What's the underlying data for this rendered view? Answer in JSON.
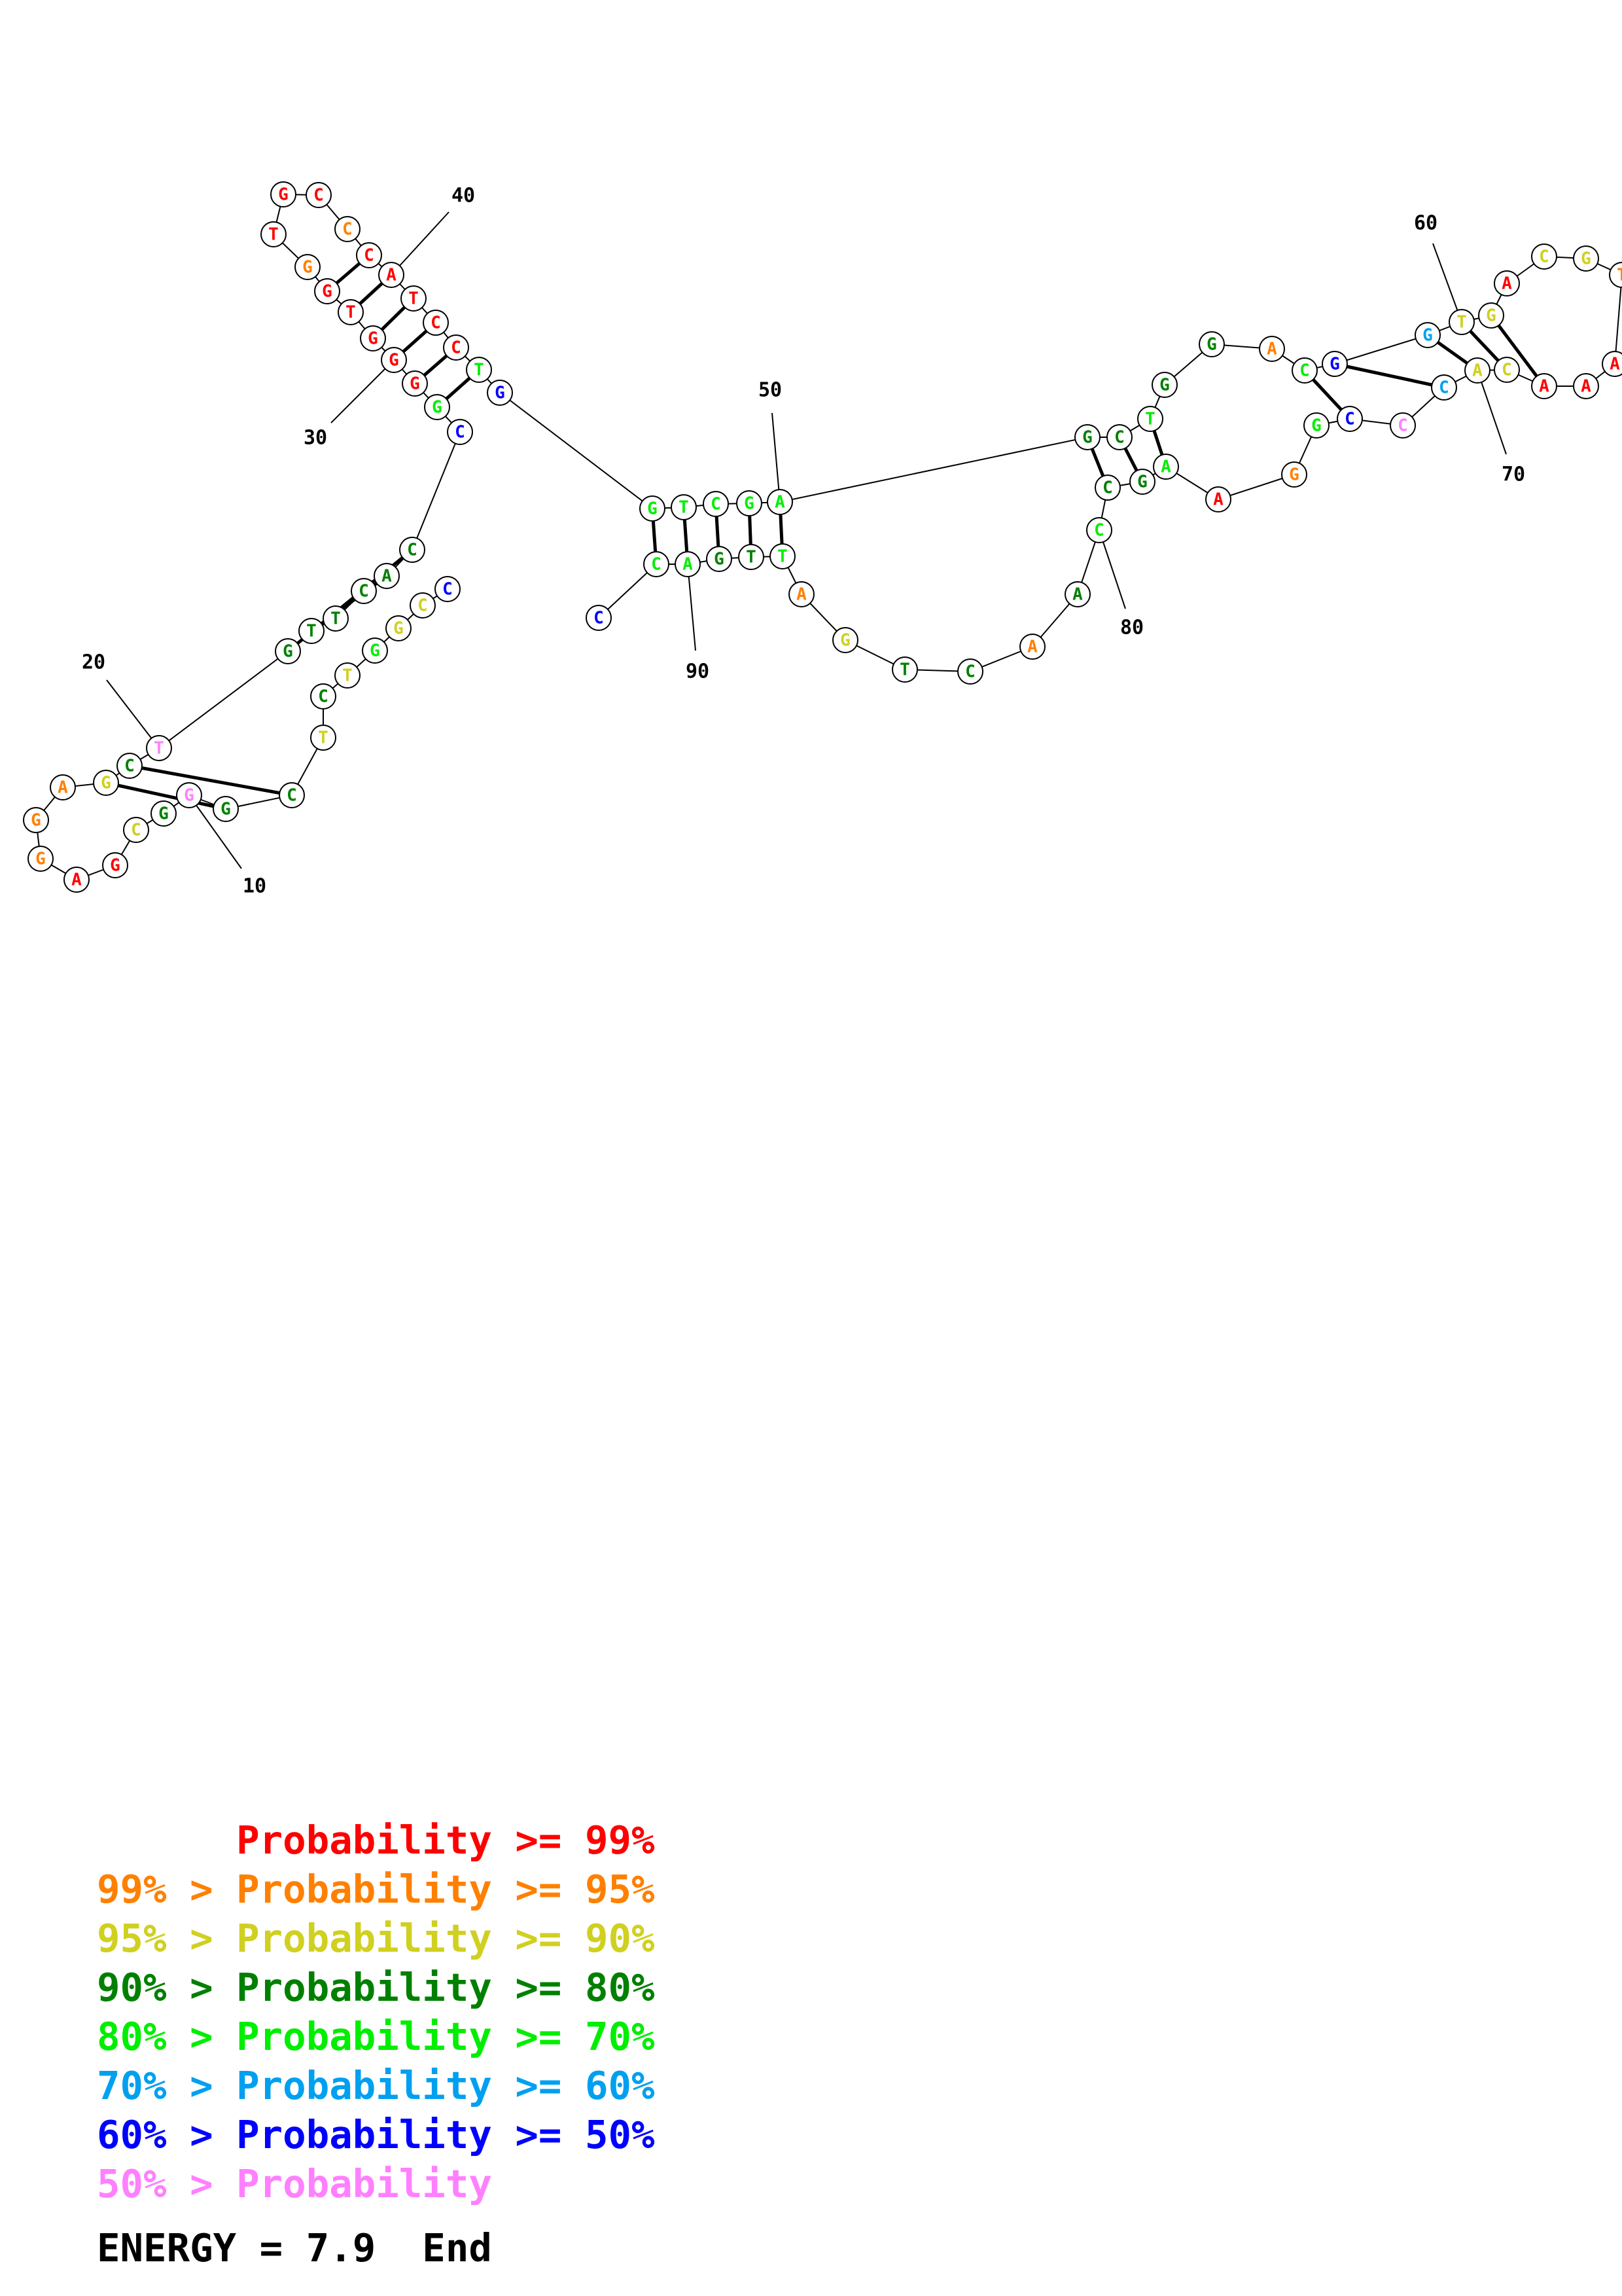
{
  "colors": {
    "p99": "#ff0000",
    "p95": "#ff8000",
    "p90": "#d0d020",
    "p80": "#008000",
    "p70": "#00ee00",
    "p60": "#00a0f0",
    "p50": "#0000ff",
    "plow": "#ff80ff"
  },
  "nucleotides": [
    {
      "n": 1,
      "b": "C",
      "c": "p50"
    },
    {
      "n": 2,
      "b": "C",
      "c": "p90"
    },
    {
      "n": 3,
      "b": "G",
      "c": "p90"
    },
    {
      "n": 4,
      "b": "G",
      "c": "p70"
    },
    {
      "n": 5,
      "b": "T",
      "c": "p90"
    },
    {
      "n": 6,
      "b": "C",
      "c": "p80"
    },
    {
      "n": 7,
      "b": "T",
      "c": "p90"
    },
    {
      "n": 8,
      "b": "C",
      "c": "p80"
    },
    {
      "n": 9,
      "b": "G",
      "c": "p80"
    },
    {
      "n": 10,
      "b": "G",
      "c": "plow"
    },
    {
      "n": 11,
      "b": "G",
      "c": "p80"
    },
    {
      "n": 12,
      "b": "C",
      "c": "p90"
    },
    {
      "n": 13,
      "b": "G",
      "c": "p99"
    },
    {
      "n": 14,
      "b": "A",
      "c": "p99"
    },
    {
      "n": 15,
      "b": "G",
      "c": "p95"
    },
    {
      "n": 16,
      "b": "G",
      "c": "p95"
    },
    {
      "n": 17,
      "b": "A",
      "c": "p95"
    },
    {
      "n": 18,
      "b": "G",
      "c": "p90"
    },
    {
      "n": 19,
      "b": "C",
      "c": "p80"
    },
    {
      "n": 20,
      "b": "T",
      "c": "plow"
    },
    {
      "n": 21,
      "b": "G",
      "c": "p80"
    },
    {
      "n": 22,
      "b": "T",
      "c": "p80"
    },
    {
      "n": 23,
      "b": "T",
      "c": "p80"
    },
    {
      "n": 24,
      "b": "C",
      "c": "p80"
    },
    {
      "n": 25,
      "b": "A",
      "c": "p80"
    },
    {
      "n": 26,
      "b": "C",
      "c": "p80"
    },
    {
      "n": 27,
      "b": "C",
      "c": "p50"
    },
    {
      "n": 28,
      "b": "G",
      "c": "p70"
    },
    {
      "n": 29,
      "b": "G",
      "c": "p99"
    },
    {
      "n": 30,
      "b": "G",
      "c": "p99"
    },
    {
      "n": 31,
      "b": "G",
      "c": "p99"
    },
    {
      "n": 32,
      "b": "T",
      "c": "p99"
    },
    {
      "n": 33,
      "b": "G",
      "c": "p99"
    },
    {
      "n": 34,
      "b": "G",
      "c": "p95"
    },
    {
      "n": 35,
      "b": "T",
      "c": "p99"
    },
    {
      "n": 36,
      "b": "G",
      "c": "p99"
    },
    {
      "n": 37,
      "b": "C",
      "c": "p99"
    },
    {
      "n": 38,
      "b": "C",
      "c": "p95"
    },
    {
      "n": 39,
      "b": "C",
      "c": "p99"
    },
    {
      "n": 40,
      "b": "A",
      "c": "p99"
    },
    {
      "n": 41,
      "b": "T",
      "c": "p99"
    },
    {
      "n": 42,
      "b": "C",
      "c": "p99"
    },
    {
      "n": 43,
      "b": "C",
      "c": "p99"
    },
    {
      "n": 44,
      "b": "T",
      "c": "p70"
    },
    {
      "n": 45,
      "b": "G",
      "c": "p50"
    },
    {
      "n": 46,
      "b": "G",
      "c": "p70"
    },
    {
      "n": 47,
      "b": "T",
      "c": "p70"
    },
    {
      "n": 48,
      "b": "C",
      "c": "p70"
    },
    {
      "n": 49,
      "b": "G",
      "c": "p70"
    },
    {
      "n": 50,
      "b": "A",
      "c": "p70"
    },
    {
      "n": 51,
      "b": "G",
      "c": "p80"
    },
    {
      "n": 52,
      "b": "C",
      "c": "p80"
    },
    {
      "n": 53,
      "b": "T",
      "c": "p70"
    },
    {
      "n": 54,
      "b": "G",
      "c": "p80"
    },
    {
      "n": 55,
      "b": "G",
      "c": "p80"
    },
    {
      "n": 56,
      "b": "A",
      "c": "p95"
    },
    {
      "n": 57,
      "b": "C",
      "c": "p70"
    },
    {
      "n": 58,
      "b": "G",
      "c": "p50"
    },
    {
      "n": 59,
      "b": "G",
      "c": "p60"
    },
    {
      "n": 60,
      "b": "T",
      "c": "p90"
    },
    {
      "n": 61,
      "b": "G",
      "c": "p90"
    },
    {
      "n": 62,
      "b": "A",
      "c": "p99"
    },
    {
      "n": 63,
      "b": "C",
      "c": "p90"
    },
    {
      "n": 64,
      "b": "G",
      "c": "p90"
    },
    {
      "n": 65,
      "b": "T",
      "c": "p95"
    },
    {
      "n": 66,
      "b": "A",
      "c": "p99"
    },
    {
      "n": 67,
      "b": "A",
      "c": "p99"
    },
    {
      "n": 68,
      "b": "A",
      "c": "p99"
    },
    {
      "n": 69,
      "b": "C",
      "c": "p90"
    },
    {
      "n": 70,
      "b": "A",
      "c": "p90"
    },
    {
      "n": 71,
      "b": "C",
      "c": "p60"
    },
    {
      "n": 72,
      "b": "C",
      "c": "plow"
    },
    {
      "n": 73,
      "b": "C",
      "c": "p50"
    },
    {
      "n": 74,
      "b": "G",
      "c": "p70"
    },
    {
      "n": 75,
      "b": "G",
      "c": "p95"
    },
    {
      "n": 76,
      "b": "A",
      "c": "p99"
    },
    {
      "n": 77,
      "b": "A",
      "c": "p70"
    },
    {
      "n": 78,
      "b": "G",
      "c": "p80"
    },
    {
      "n": 79,
      "b": "C",
      "c": "p80"
    },
    {
      "n": 80,
      "b": "C",
      "c": "p70"
    },
    {
      "n": 81,
      "b": "A",
      "c": "p80"
    },
    {
      "n": 82,
      "b": "A",
      "c": "p95"
    },
    {
      "n": 83,
      "b": "C",
      "c": "p80"
    },
    {
      "n": 84,
      "b": "T",
      "c": "p80"
    },
    {
      "n": 85,
      "b": "G",
      "c": "p90"
    },
    {
      "n": 86,
      "b": "A",
      "c": "p95"
    },
    {
      "n": 87,
      "b": "T",
      "c": "p70"
    },
    {
      "n": 88,
      "b": "T",
      "c": "p80"
    },
    {
      "n": 89,
      "b": "G",
      "c": "p80"
    },
    {
      "n": 90,
      "b": "A",
      "c": "p70"
    },
    {
      "n": 91,
      "b": "C",
      "c": "p70"
    },
    {
      "n": 92,
      "b": "C",
      "c": "p50"
    }
  ],
  "pairs": [
    [
      1,
      0
    ],
    [
      8,
      19
    ],
    [
      9,
      18
    ],
    [
      12,
      0
    ],
    [
      21,
      26
    ],
    [
      22,
      25
    ],
    [
      28,
      44
    ],
    [
      29,
      43
    ],
    [
      30,
      42
    ],
    [
      31,
      41
    ],
    [
      32,
      40
    ],
    [
      33,
      39
    ],
    [
      46,
      91
    ],
    [
      47,
      90
    ],
    [
      48,
      89
    ],
    [
      49,
      88
    ],
    [
      50,
      87
    ],
    [
      51,
      79
    ],
    [
      52,
      78
    ],
    [
      53,
      77
    ],
    [
      57,
      73
    ],
    [
      58,
      71
    ],
    [
      59,
      70
    ],
    [
      60,
      69
    ],
    [
      61,
      68
    ]
  ],
  "tick_labels": [
    {
      "label": "10",
      "n": 10
    },
    {
      "label": "20",
      "n": 20
    },
    {
      "label": "30",
      "n": 30
    },
    {
      "label": "40",
      "n": 40
    },
    {
      "label": "50",
      "n": 50
    },
    {
      "label": "60",
      "n": 60
    },
    {
      "label": "70",
      "n": 70
    },
    {
      "label": "80",
      "n": 80
    },
    {
      "label": "90",
      "n": 90
    }
  ],
  "legend": [
    {
      "text": "      Probability >= 99%",
      "c": "p99"
    },
    {
      "text": "99% > Probability >= 95%",
      "c": "p95"
    },
    {
      "text": "95% > Probability >= 90%",
      "c": "p90"
    },
    {
      "text": "90% > Probability >= 80%",
      "c": "p80"
    },
    {
      "text": "80% > Probability >= 70%",
      "c": "p70"
    },
    {
      "text": "70% > Probability >= 60%",
      "c": "p60"
    },
    {
      "text": "60% > Probability >= 50%",
      "c": "p50"
    },
    {
      "text": "50% > Probability",
      "c": "plow"
    }
  ],
  "energy": {
    "text": "ENERGY = 7.9  End"
  }
}
